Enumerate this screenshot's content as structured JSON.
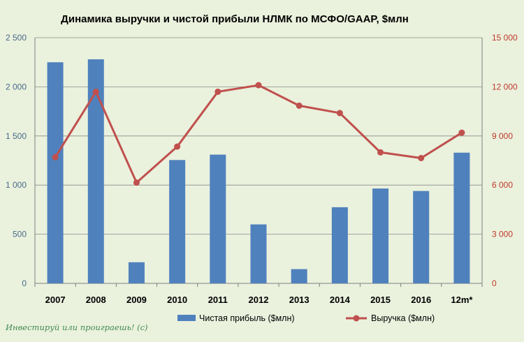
{
  "chart_data": {
    "type": "bar+line",
    "title": "Динамика выручки  и чистой прибыли НЛМК по МСФО/GAAP,  $млн",
    "categories": [
      "2007",
      "2008",
      "2009",
      "2010",
      "2011",
      "2012",
      "2013",
      "2014",
      "2015",
      "2016",
      "12m*"
    ],
    "series": [
      {
        "name": "Чистая прибыль ($млн)",
        "type": "bar",
        "axis": "left",
        "color": "#4f81bd",
        "values": [
          2250,
          2280,
          215,
          1255,
          1310,
          600,
          145,
          775,
          965,
          940,
          1330
        ]
      },
      {
        "name": "Выручка ($млн)",
        "type": "line",
        "axis": "right",
        "color": "#c0504d",
        "values": [
          7700,
          11700,
          6150,
          8350,
          11700,
          12100,
          10850,
          10400,
          8000,
          7650,
          9200
        ]
      }
    ],
    "left_axis": {
      "min": 0,
      "max": 2500,
      "ticks": [
        "0",
        "500",
        "1 000",
        "1 500",
        "2 000",
        "2 500"
      ],
      "tick_values": [
        0,
        500,
        1000,
        1500,
        2000,
        2500
      ]
    },
    "right_axis": {
      "min": 0,
      "max": 15000,
      "ticks": [
        "0",
        "3 000",
        "6 000",
        "9 000",
        "12 000",
        "15 000"
      ],
      "tick_values": [
        0,
        3000,
        6000,
        9000,
        12000,
        15000
      ]
    },
    "grid": true,
    "legend_position": "bottom",
    "watermark": "Инвестируй или проиграешь! (c)"
  }
}
